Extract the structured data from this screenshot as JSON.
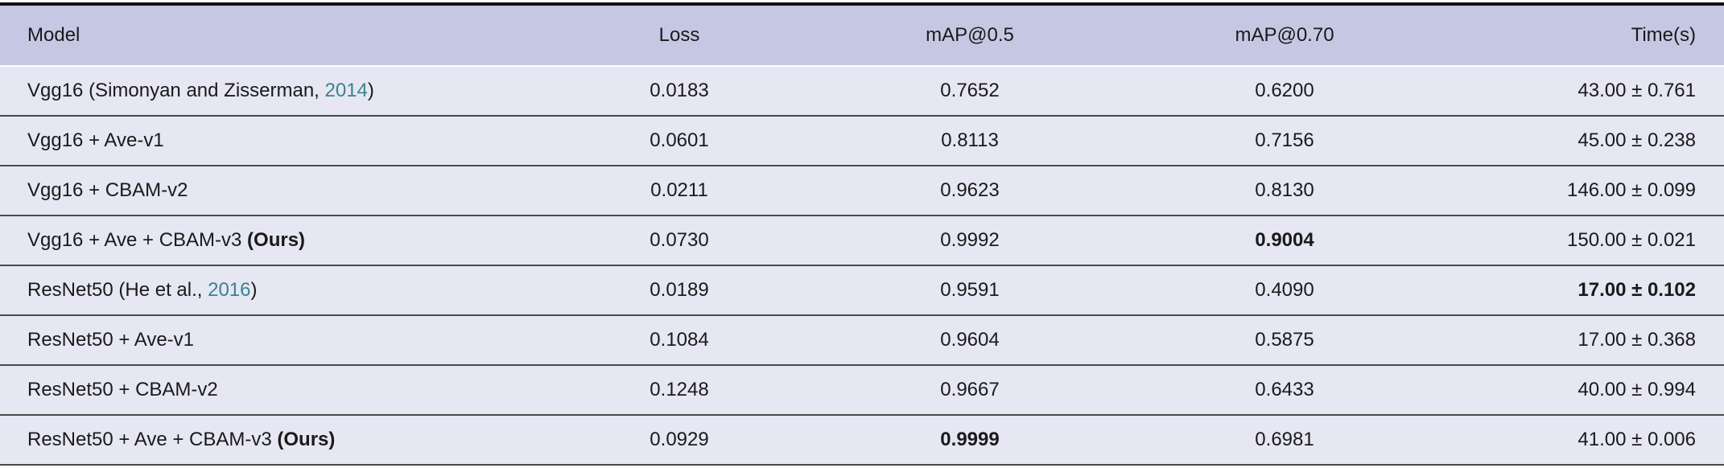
{
  "table": {
    "header": [
      "Model",
      "Loss",
      "mAP@0.5",
      "mAP@0.70",
      "Time(s)"
    ],
    "rows": [
      {
        "model": [
          {
            "text": "Vgg16 (Simonyan and Zisserman, "
          },
          {
            "text": "2014",
            "link": true
          },
          {
            "text": ")"
          }
        ],
        "values": [
          "0.0183",
          "0.7652",
          "0.6200",
          "43.00 ± 0.761"
        ],
        "bold": []
      },
      {
        "model": [
          {
            "text": "Vgg16 + Ave-v1"
          }
        ],
        "values": [
          "0.0601",
          "0.8113",
          "0.7156",
          "45.00 ± 0.238"
        ],
        "bold": []
      },
      {
        "model": [
          {
            "text": "Vgg16 + CBAM-v2"
          }
        ],
        "values": [
          "0.0211",
          "0.9623",
          "0.8130",
          "146.00 ± 0.099"
        ],
        "bold": []
      },
      {
        "model": [
          {
            "text": "Vgg16 + Ave + CBAM-v3 "
          },
          {
            "text": "(Ours)",
            "bold": true
          }
        ],
        "values": [
          "0.0730",
          "0.9992",
          "0.9004",
          "150.00 ± 0.021"
        ],
        "bold": [
          2
        ]
      },
      {
        "model": [
          {
            "text": "ResNet50 (He et al., "
          },
          {
            "text": "2016",
            "link": true
          },
          {
            "text": ")"
          }
        ],
        "values": [
          "0.0189",
          "0.9591",
          "0.4090",
          "17.00 ± 0.102"
        ],
        "bold": [
          3
        ]
      },
      {
        "model": [
          {
            "text": "ResNet50 + Ave-v1"
          }
        ],
        "values": [
          "0.1084",
          "0.9604",
          "0.5875",
          "17.00 ± 0.368"
        ],
        "bold": []
      },
      {
        "model": [
          {
            "text": "ResNet50 + CBAM-v2"
          }
        ],
        "values": [
          "0.1248",
          "0.9667",
          "0.6433",
          "40.00 ± 0.994"
        ],
        "bold": []
      },
      {
        "model": [
          {
            "text": "ResNet50 + Ave + CBAM-v3 "
          },
          {
            "text": "(Ours)",
            "bold": true
          }
        ],
        "values": [
          "0.0929",
          "0.9999",
          "0.6981",
          "41.00 ± 0.006"
        ],
        "bold": [
          1
        ]
      }
    ]
  }
}
